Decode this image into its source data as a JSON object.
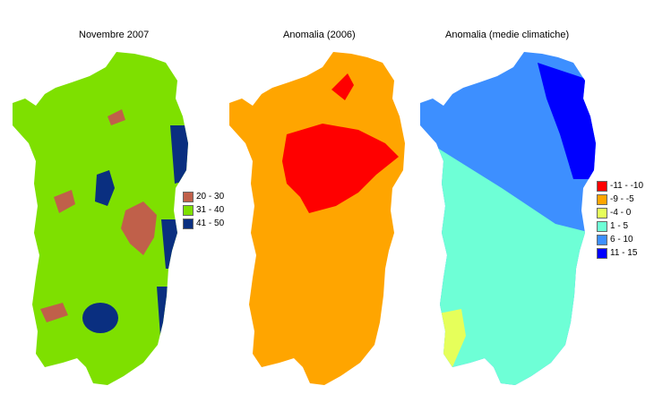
{
  "maps": [
    {
      "title": "Novembre 2007",
      "base_color": "#7ee000",
      "legend": [
        {
          "label": "20 - 30",
          "color": "#c0604a"
        },
        {
          "label": "31 - 40",
          "color": "#7ee000"
        },
        {
          "label": "41 - 50",
          "color": "#0a2f80"
        }
      ]
    },
    {
      "title": "Anomalia (2006)",
      "base_color": "#ffa500",
      "accent_color": "#ff0000"
    },
    {
      "title": "Anomalia (medie climatiche)",
      "base_color": "#3d8fff",
      "legend": [
        {
          "label": "-11 - -10",
          "color": "#ff0000"
        },
        {
          "label": "-9 - -5",
          "color": "#ffa500"
        },
        {
          "label": "-4 - 0",
          "color": "#e6ff5a"
        },
        {
          "label": "1 - 5",
          "color": "#6effd6"
        },
        {
          "label": "6 - 10",
          "color": "#3d8fff"
        },
        {
          "label": "11 - 15",
          "color": "#0000ff"
        }
      ]
    }
  ]
}
